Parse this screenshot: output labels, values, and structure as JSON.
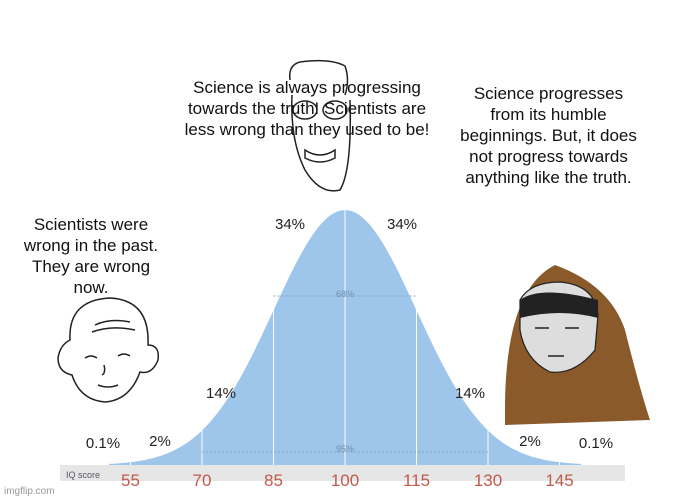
{
  "captions": {
    "left": "Scientists were wrong in the past. They are wrong now.",
    "center": "Science is always progressing towards the truth! Scientists are less wrong than they used to be!",
    "right": "Science progresses from its humble beginnings. But, it does not progress towards anything like the truth."
  },
  "curve": {
    "axis_label": "IQ score",
    "scores": [
      "55",
      "70",
      "85",
      "100",
      "115",
      "130",
      "145"
    ],
    "percent_labels": [
      "0.1%",
      "2%",
      "14%",
      "34%",
      "34%",
      "14%",
      "2%",
      "0.1%"
    ],
    "inner_labels": [
      "68%",
      "95%"
    ]
  },
  "watermark": "imgflip.com"
}
